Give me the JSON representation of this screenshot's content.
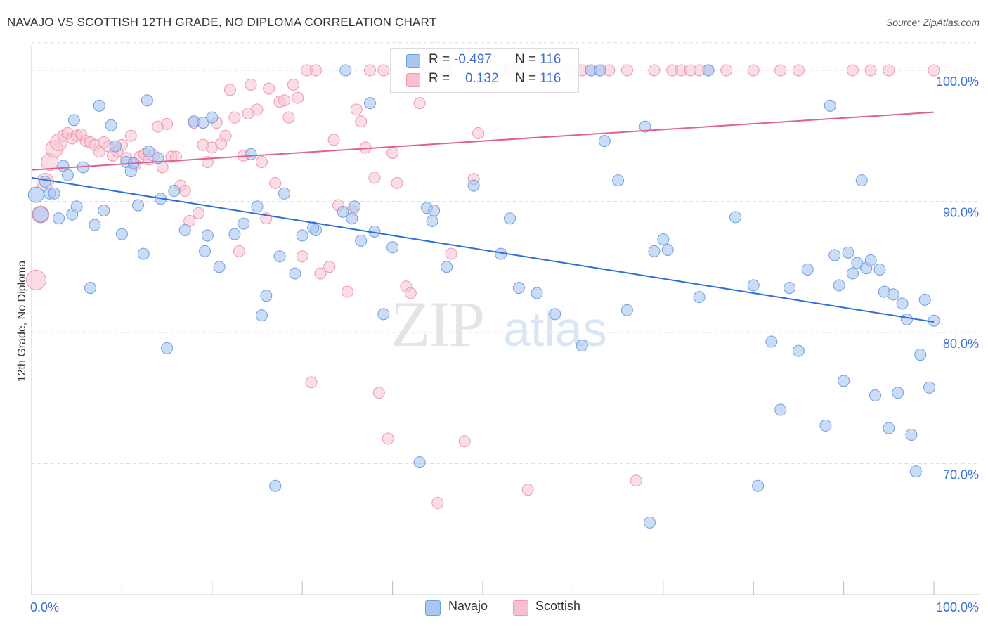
{
  "title": "NAVAJO VS SCOTTISH 12TH GRADE, NO DIPLOMA CORRELATION CHART",
  "source": "Source: ZipAtlas.com",
  "watermark": {
    "zip": "ZIP",
    "atlas": "atlas"
  },
  "legend": {
    "rows": [
      {
        "r_label": "R =",
        "r_value": "-0.497",
        "n_label": "N =",
        "n_value": "116"
      },
      {
        "r_label": "R =",
        "r_value": "0.132",
        "n_label": "N =",
        "n_value": "116"
      }
    ]
  },
  "bottom_legend": [
    "Navajo",
    "Scottish"
  ],
  "colors": {
    "navajo_fill": "#a9c6f0",
    "navajo_stroke": "#6f9ee0",
    "navajo_line": "#2b6fd6",
    "scottish_fill": "#f7c1cf",
    "scottish_stroke": "#ee98b0",
    "scottish_line": "#e0628a",
    "grid": "#e0e0e0",
    "axis_label": "#3a6fd8"
  },
  "chart_data": {
    "type": "scatter",
    "title": "NAVAJO VS SCOTTISH 12TH GRADE, NO DIPLOMA CORRELATION CHART",
    "xlabel": "",
    "ylabel": "12th Grade, No Diploma",
    "xlim": [
      0,
      100
    ],
    "ylim": [
      60,
      103
    ],
    "x_tick_labels": [
      "0.0%",
      "100.0%"
    ],
    "y_ticks": [
      70,
      80,
      90,
      100
    ],
    "y_tick_labels": [
      "70.0%",
      "80.0%",
      "90.0%",
      "100.0%"
    ],
    "grid": true,
    "series": [
      {
        "name": "Navajo",
        "r": -0.497,
        "n": 116,
        "trend": {
          "x": [
            0,
            100
          ],
          "y": [
            91.8,
            80.8
          ]
        },
        "points": [
          [
            0.5,
            90.5
          ],
          [
            1,
            89
          ],
          [
            1.5,
            91.5
          ],
          [
            2,
            90.6
          ],
          [
            2.5,
            90.6
          ],
          [
            3,
            88.7
          ],
          [
            3.5,
            92.7
          ],
          [
            4,
            92
          ],
          [
            4.5,
            89
          ],
          [
            4.7,
            96.2
          ],
          [
            5,
            89.6
          ],
          [
            5.7,
            92.6
          ],
          [
            6.5,
            83.4
          ],
          [
            7,
            88.2
          ],
          [
            7.5,
            97.3
          ],
          [
            8,
            89.3
          ],
          [
            8.8,
            95.8
          ],
          [
            9.3,
            94.2
          ],
          [
            10,
            87.5
          ],
          [
            10.5,
            93
          ],
          [
            11,
            92.3
          ],
          [
            11.3,
            92.9
          ],
          [
            11.8,
            89.7
          ],
          [
            12.4,
            86
          ],
          [
            12.8,
            97.7
          ],
          [
            13,
            93.8
          ],
          [
            14,
            93.3
          ],
          [
            14.3,
            90.2
          ],
          [
            15,
            78.8
          ],
          [
            15.8,
            90.8
          ],
          [
            17,
            87.8
          ],
          [
            18,
            96.1
          ],
          [
            19,
            96
          ],
          [
            19.2,
            86.2
          ],
          [
            19.5,
            87.4
          ],
          [
            20,
            96.4
          ],
          [
            20.8,
            85
          ],
          [
            22.5,
            87.5
          ],
          [
            23.5,
            88.3
          ],
          [
            24.3,
            93.6
          ],
          [
            25,
            89.6
          ],
          [
            25.5,
            81.3
          ],
          [
            26,
            82.8
          ],
          [
            27,
            68.3
          ],
          [
            27.5,
            85.8
          ],
          [
            28,
            90.6
          ],
          [
            29.2,
            84.5
          ],
          [
            30,
            87.4
          ],
          [
            31.5,
            87.8
          ],
          [
            34.5,
            89.2
          ],
          [
            34.8,
            100
          ],
          [
            35.5,
            88.7
          ],
          [
            35.8,
            89.6
          ],
          [
            36.5,
            87
          ],
          [
            37.5,
            97.5
          ],
          [
            38,
            87.7
          ],
          [
            39,
            81.4
          ],
          [
            40,
            86.5
          ],
          [
            43,
            70.1
          ],
          [
            43.8,
            89.5
          ],
          [
            44.4,
            88.5
          ],
          [
            44.6,
            89.3
          ],
          [
            49,
            91.2
          ],
          [
            53,
            88.7
          ],
          [
            54,
            83.4
          ],
          [
            58,
            81.4
          ],
          [
            61,
            79
          ],
          [
            62,
            100
          ],
          [
            63,
            100
          ],
          [
            63.5,
            94.6
          ],
          [
            65,
            91.6
          ],
          [
            66,
            81.7
          ],
          [
            68,
            95.7
          ],
          [
            68.5,
            65.5
          ],
          [
            69,
            86.2
          ],
          [
            70,
            87.1
          ],
          [
            70.5,
            86.3
          ],
          [
            74,
            82.7
          ],
          [
            75,
            100
          ],
          [
            78,
            88.8
          ],
          [
            80,
            83.6
          ],
          [
            80.5,
            68.3
          ],
          [
            82,
            79.3
          ],
          [
            83,
            74.1
          ],
          [
            84,
            83.4
          ],
          [
            85,
            78.6
          ],
          [
            86,
            84.8
          ],
          [
            88,
            72.9
          ],
          [
            88.5,
            97.3
          ],
          [
            89,
            85.9
          ],
          [
            89.5,
            83.6
          ],
          [
            90,
            76.3
          ],
          [
            90.5,
            86.1
          ],
          [
            91,
            84.5
          ],
          [
            91.5,
            85.3
          ],
          [
            92,
            91.6
          ],
          [
            92.5,
            84.9
          ],
          [
            93,
            85.5
          ],
          [
            93.5,
            75.2
          ],
          [
            94,
            84.8
          ],
          [
            94.5,
            83.1
          ],
          [
            95,
            72.7
          ],
          [
            95.5,
            82.9
          ],
          [
            96,
            75.4
          ],
          [
            96.5,
            82.2
          ],
          [
            97,
            81
          ],
          [
            97.5,
            72.2
          ],
          [
            98,
            69.4
          ],
          [
            98.5,
            78.3
          ],
          [
            99,
            82.5
          ],
          [
            99.5,
            75.8
          ],
          [
            100,
            80.9
          ],
          [
            31.2,
            88
          ],
          [
            46,
            85
          ],
          [
            52,
            86
          ],
          [
            56,
            83
          ]
        ]
      },
      {
        "name": "Scottish",
        "r": 0.132,
        "n": 116,
        "trend": {
          "x": [
            0,
            100
          ],
          "y": [
            92.4,
            96.8
          ]
        },
        "points": [
          [
            0.5,
            84
          ],
          [
            1,
            89
          ],
          [
            1.5,
            91.5
          ],
          [
            2,
            93
          ],
          [
            2.5,
            94
          ],
          [
            3,
            94.5
          ],
          [
            3.5,
            95
          ],
          [
            4,
            95.2
          ],
          [
            4.5,
            94.8
          ],
          [
            5,
            95
          ],
          [
            5.5,
            95.1
          ],
          [
            6,
            94.6
          ],
          [
            6.5,
            94.5
          ],
          [
            7,
            94.3
          ],
          [
            7.5,
            93.8
          ],
          [
            8,
            94.5
          ],
          [
            8.5,
            94.2
          ],
          [
            9,
            93.5
          ],
          [
            9.5,
            93.8
          ],
          [
            10,
            94.3
          ],
          [
            10.5,
            93.3
          ],
          [
            11,
            95
          ],
          [
            11.5,
            92.8
          ],
          [
            12,
            93.4
          ],
          [
            12.5,
            93.6
          ],
          [
            13,
            93.2
          ],
          [
            13.5,
            93.5
          ],
          [
            14,
            95.7
          ],
          [
            14.5,
            92.6
          ],
          [
            15,
            95.9
          ],
          [
            15.5,
            93.4
          ],
          [
            16,
            93.4
          ],
          [
            16.5,
            91.2
          ],
          [
            17,
            90.8
          ],
          [
            17.5,
            88.5
          ],
          [
            18,
            96
          ],
          [
            18.5,
            89.1
          ],
          [
            19,
            94.3
          ],
          [
            19.5,
            93
          ],
          [
            20,
            94.1
          ],
          [
            20.5,
            96
          ],
          [
            21,
            94.4
          ],
          [
            21.5,
            95
          ],
          [
            22,
            98.5
          ],
          [
            22.5,
            96.4
          ],
          [
            23,
            86.2
          ],
          [
            23.5,
            93.5
          ],
          [
            24,
            96.7
          ],
          [
            24.3,
            98.9
          ],
          [
            25,
            97
          ],
          [
            25.5,
            93
          ],
          [
            26,
            88.7
          ],
          [
            26.3,
            98.6
          ],
          [
            27,
            91.4
          ],
          [
            27.5,
            97.6
          ],
          [
            28,
            97.7
          ],
          [
            28.5,
            96.4
          ],
          [
            29,
            98.9
          ],
          [
            29.5,
            97.9
          ],
          [
            30,
            85.8
          ],
          [
            30.5,
            100
          ],
          [
            31,
            76.2
          ],
          [
            31.5,
            100
          ],
          [
            32,
            84.5
          ],
          [
            33,
            85
          ],
          [
            33.5,
            94.7
          ],
          [
            34,
            89.7
          ],
          [
            35,
            83.1
          ],
          [
            35.5,
            89.3
          ],
          [
            36,
            97
          ],
          [
            36.5,
            96.1
          ],
          [
            37,
            94.1
          ],
          [
            37.5,
            100
          ],
          [
            38,
            91.8
          ],
          [
            38.5,
            75.4
          ],
          [
            39,
            100
          ],
          [
            39.5,
            71.9
          ],
          [
            40,
            93.7
          ],
          [
            40.5,
            91.4
          ],
          [
            41.5,
            83.5
          ],
          [
            42,
            83
          ],
          [
            43,
            97.5
          ],
          [
            44,
            100
          ],
          [
            45,
            67
          ],
          [
            46,
            100
          ],
          [
            46.5,
            86
          ],
          [
            48,
            71.7
          ],
          [
            49,
            91.7
          ],
          [
            49.5,
            95.2
          ],
          [
            52,
            100
          ],
          [
            53,
            100
          ],
          [
            54,
            100
          ],
          [
            55,
            68
          ],
          [
            57,
            100
          ],
          [
            58,
            100
          ],
          [
            59.5,
            100
          ],
          [
            61,
            100
          ],
          [
            62,
            100
          ],
          [
            63,
            100
          ],
          [
            64,
            100
          ],
          [
            66,
            100
          ],
          [
            67,
            68.7
          ],
          [
            69,
            100
          ],
          [
            71,
            100
          ],
          [
            72,
            100
          ],
          [
            73,
            100
          ],
          [
            74,
            100
          ],
          [
            75,
            100
          ],
          [
            77,
            100
          ],
          [
            80,
            100
          ],
          [
            83,
            100
          ],
          [
            85,
            100
          ],
          [
            91,
            100
          ],
          [
            93,
            100
          ],
          [
            95,
            100
          ],
          [
            100,
            100
          ]
        ]
      }
    ]
  }
}
